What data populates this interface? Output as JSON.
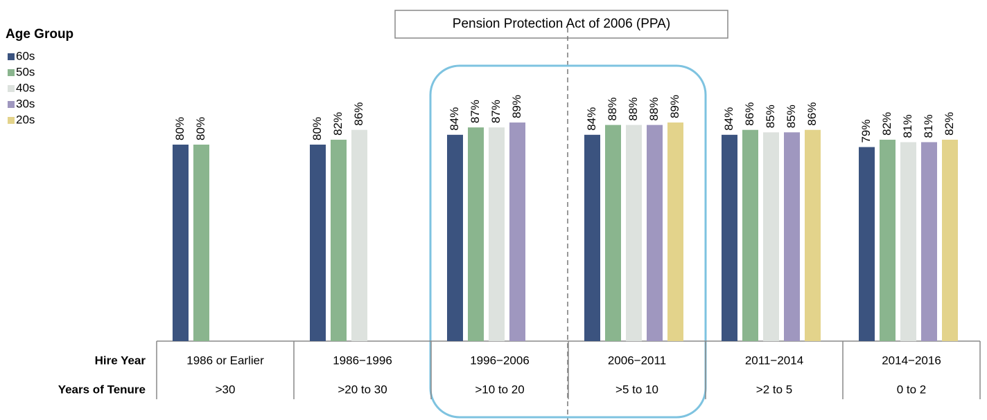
{
  "chart_data": {
    "type": "bar",
    "annotation": "Pension Protection Act of 2006 (PPA)",
    "legend_title": "Age Group",
    "row_labels": [
      "Hire Year",
      "Years of Tenure"
    ],
    "categories": [
      "1986 or Earlier",
      "1986−1996",
      "1996−2006",
      "2006−2011",
      "2011−2014",
      "2014−2016"
    ],
    "tenure": [
      ">30",
      ">20 to 30",
      ">10 to 20",
      ">5 to 10",
      ">2 to 5",
      "0 to 2"
    ],
    "series": [
      {
        "name": "60s",
        "color": "#3b537f",
        "values": [
          80,
          80,
          84,
          84,
          84,
          79
        ],
        "value_labels": [
          "80%",
          "80%",
          "84%",
          "84%",
          "84%",
          "79%"
        ]
      },
      {
        "name": "50s",
        "color": "#8ab58e",
        "values": [
          80,
          82,
          87,
          88,
          86,
          82
        ],
        "value_labels": [
          "80%",
          "82%",
          "87%",
          "88%",
          "86%",
          "82%"
        ]
      },
      {
        "name": "40s",
        "color": "#dde2de",
        "values": [
          null,
          86,
          87,
          88,
          85,
          81
        ],
        "value_labels": [
          null,
          "86%",
          "87%",
          "88%",
          "85%",
          "81%"
        ]
      },
      {
        "name": "30s",
        "color": "#9f97bf",
        "values": [
          null,
          null,
          89,
          88,
          85,
          81
        ],
        "value_labels": [
          null,
          null,
          "89%",
          "88%",
          "85%",
          "81%"
        ]
      },
      {
        "name": "20s",
        "color": "#e3d38b",
        "values": [
          null,
          null,
          null,
          89,
          86,
          82
        ],
        "value_labels": [
          null,
          null,
          null,
          "89%",
          "86%",
          "82%"
        ]
      }
    ]
  }
}
